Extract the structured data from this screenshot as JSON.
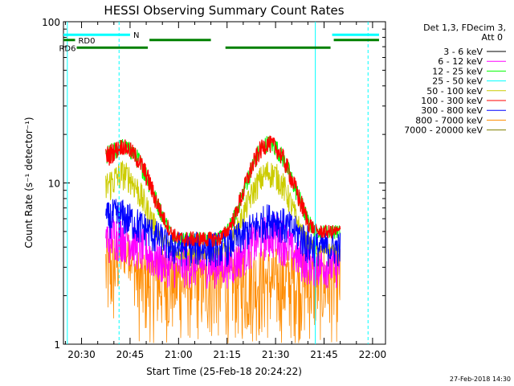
{
  "chart_data": {
    "type": "line",
    "title": "HESSI Observing Summary Count Rates",
    "xlabel": "Start Time (25-Feb-18 20:24:22)",
    "ylabel": "Count Rate (s⁻¹ detector⁻¹)",
    "yscale": "log",
    "ylim": [
      1,
      100
    ],
    "xlim_minutes_of_day": [
      1224.4,
      1324
    ],
    "x_ticks": [
      "20:30",
      "20:45",
      "21:00",
      "21:15",
      "21:30",
      "21:45",
      "22:00"
    ],
    "x_tick_minutes": [
      1230,
      1245,
      1260,
      1275,
      1290,
      1305,
      1320
    ],
    "y_ticks": [
      "1",
      "10",
      "100"
    ],
    "y_tick_values": [
      1,
      10,
      100
    ],
    "legend": {
      "header_line1": "Det 1,3, FDecim 3,",
      "header_line2": "Att 0",
      "position": "right"
    },
    "series": [
      {
        "name": "3 - 6 keV",
        "color": "#000000"
      },
      {
        "name": "6 - 12 keV",
        "color": "#ff00ff"
      },
      {
        "name": "12 - 25 keV",
        "color": "#00ff00"
      },
      {
        "name": "25 - 50 keV",
        "color": "#00ffff"
      },
      {
        "name": "50 - 100 keV",
        "color": "#cccc00"
      },
      {
        "name": "100 - 300 keV",
        "color": "#ff0000"
      },
      {
        "name": "300 - 800 keV",
        "color": "#0000ff"
      },
      {
        "name": "800 - 7000 keV",
        "color": "#ff8c00"
      },
      {
        "name": "7000 - 20000 keV",
        "color": "#808000"
      }
    ],
    "count_curves": {
      "time_minutes": [
        1237.5,
        1240,
        1242.5,
        1245,
        1247.5,
        1250,
        1252.5,
        1255,
        1257.5,
        1260,
        1262.5,
        1265,
        1267.5,
        1270,
        1272.5,
        1275,
        1277.5,
        1280,
        1282.5,
        1285,
        1287.5,
        1290,
        1292.5,
        1295,
        1297.5,
        1300,
        1302.5,
        1305,
        1307.5,
        1310
      ],
      "red_upper": [
        17,
        18,
        19,
        18,
        16,
        13,
        9.5,
        7,
        5.5,
        5,
        5,
        5,
        5,
        5,
        5,
        5.5,
        7,
        10,
        14,
        18,
        20,
        19,
        16,
        12,
        9,
        6.5,
        5.5,
        5.5,
        5.5,
        5.5
      ],
      "red_lower": [
        12,
        13.5,
        15,
        14,
        12,
        9.5,
        7,
        5.5,
        4.5,
        4,
        4,
        4,
        4,
        4,
        4,
        4.5,
        5.5,
        7.5,
        10.5,
        13.5,
        15.5,
        14.5,
        12,
        9,
        6.5,
        5,
        4.5,
        4.5,
        4.5,
        4.5
      ],
      "yellow_upper": [
        12,
        13,
        14,
        13,
        11,
        8.5,
        6.5,
        5,
        4.5,
        4,
        4,
        4,
        4,
        4,
        4,
        4.5,
        5.5,
        7.5,
        10,
        12.5,
        14,
        13.5,
        11.5,
        8.5,
        6,
        4.8,
        4.2,
        4.2,
        4.2,
        4.2
      ],
      "yellow_lower": [
        7,
        8,
        9,
        8.5,
        7,
        5.5,
        4.5,
        4,
        3.5,
        3.3,
        3.3,
        3.3,
        3.3,
        3.3,
        3.3,
        3.5,
        4.2,
        5.2,
        6.8,
        8.2,
        9.3,
        9,
        7.5,
        5.8,
        4.5,
        3.8,
        3.5,
        3.5,
        3.5,
        3.5
      ],
      "blue_upper": [
        7.5,
        8,
        8,
        7.5,
        7,
        6.5,
        6,
        5.5,
        5,
        5,
        5,
        5,
        5,
        5,
        5,
        5,
        5.5,
        6,
        6.5,
        7,
        7.5,
        7.5,
        7,
        6.5,
        6,
        5.5,
        5,
        5,
        5,
        5
      ],
      "blue_lower": [
        4.5,
        4.5,
        4.5,
        4.5,
        4,
        4,
        3.5,
        3.5,
        3,
        3,
        3,
        3,
        3,
        3,
        3,
        3,
        3.5,
        3.5,
        4,
        4,
        4.5,
        4.5,
        4,
        4,
        3.5,
        3,
        3,
        3,
        3,
        3
      ],
      "magenta_upper": [
        6,
        6.5,
        6.5,
        6,
        5.5,
        5,
        4.5,
        4.2,
        4,
        4,
        4,
        4,
        4,
        4,
        4,
        4,
        4.2,
        4.8,
        5.5,
        6,
        6.5,
        6.5,
        6,
        5,
        4.5,
        4.2,
        4,
        4,
        4,
        4
      ],
      "magenta_lower": [
        3,
        3.2,
        3.2,
        3,
        2.8,
        2.6,
        2.4,
        2.3,
        2.2,
        2.2,
        2.2,
        2.2,
        2.2,
        2.2,
        2.2,
        2.2,
        2.3,
        2.6,
        2.9,
        3.1,
        3.3,
        3.3,
        3,
        2.7,
        2.4,
        2.3,
        2.2,
        2.2,
        2.2,
        2.2
      ],
      "orange_upper": [
        5,
        5,
        5,
        5,
        4,
        4,
        4,
        4,
        4,
        4,
        4,
        4,
        4,
        4,
        4,
        4,
        4,
        4,
        4,
        4,
        4,
        4,
        4,
        4,
        4,
        4,
        4,
        4,
        4,
        4
      ],
      "orange_lower": [
        1,
        1,
        2.5,
        2.5,
        1,
        1,
        1,
        1,
        1,
        1,
        1,
        1,
        1,
        1,
        1,
        1,
        1,
        1,
        1,
        1,
        1,
        1,
        1,
        1,
        1,
        1,
        1,
        1,
        1,
        1
      ]
    },
    "annotations": [
      {
        "label": "N",
        "type": "segment",
        "color": "#00ffff",
        "y": 83,
        "x_start": 1224.4,
        "x_end": 1245
      },
      {
        "label": "",
        "type": "segment",
        "color": "#00ffff",
        "y": 83,
        "x_start": 1307.5,
        "x_end": 1322
      },
      {
        "label": "RD0",
        "type": "segment",
        "color": "#008000",
        "y": 77,
        "x_start": 1224.4,
        "x_end": 1228
      },
      {
        "label": "",
        "type": "segment",
        "color": "#008000",
        "y": 77,
        "x_start": 1251,
        "x_end": 1270
      },
      {
        "label": "",
        "type": "segment",
        "color": "#008000",
        "y": 77,
        "x_start": 1308,
        "x_end": 1322
      },
      {
        "label": "RD6",
        "type": "segment",
        "color": "#008000",
        "y": 69,
        "x_start": 1228.5,
        "x_end": 1250.5
      },
      {
        "label": "",
        "type": "segment",
        "color": "#008000",
        "y": 69,
        "x_start": 1274.5,
        "x_end": 1307
      }
    ],
    "vertical_lines": [
      {
        "x": 1225.6,
        "color": "#00ffff",
        "style": "solid"
      },
      {
        "x": 1241.6,
        "color": "#00ffff",
        "style": "dashed"
      },
      {
        "x": 1302.3,
        "color": "#00ffff",
        "style": "solid"
      },
      {
        "x": 1318.6,
        "color": "#00ffff",
        "style": "dashed"
      }
    ],
    "data_start_minute": 1237.5,
    "data_end_minute": 1310,
    "grid": false,
    "footer_stamp": "27-Feb-2018 14:30"
  }
}
